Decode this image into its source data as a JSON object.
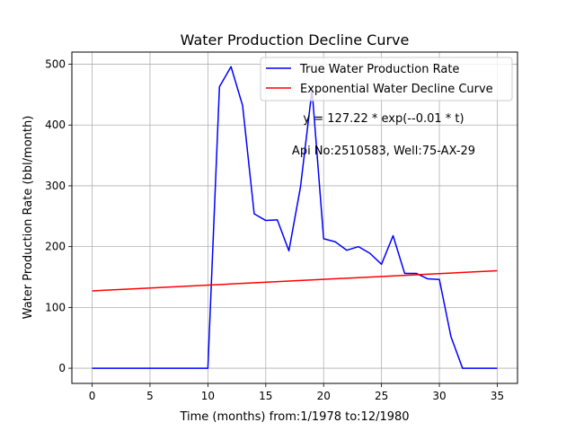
{
  "chart_data": {
    "type": "line",
    "title": "Water Production Decline Curve",
    "xlabel": "Time (months) from:1/1978 to:12/1980",
    "ylabel": "Water Production Rate (bbl/month)",
    "xlim": [
      -1.75,
      36.75
    ],
    "ylim": [
      -25,
      520
    ],
    "xticks": [
      0,
      5,
      10,
      15,
      20,
      25,
      30,
      35
    ],
    "yticks": [
      0,
      100,
      200,
      300,
      400,
      500
    ],
    "grid": true,
    "legend_position": "top-right",
    "series": [
      {
        "name": "True Water Production Rate",
        "color": "#0000ff",
        "x": [
          0,
          1,
          2,
          3,
          4,
          5,
          6,
          7,
          8,
          9,
          10,
          11,
          12,
          13,
          14,
          15,
          16,
          17,
          18,
          19,
          20,
          21,
          22,
          23,
          24,
          25,
          26,
          27,
          28,
          29,
          30,
          31,
          32,
          33,
          34,
          35
        ],
        "y": [
          0,
          0,
          0,
          0,
          0,
          0,
          0,
          0,
          0,
          0,
          0,
          463,
          496,
          432,
          254,
          243,
          244,
          193,
          298,
          458,
          213,
          208,
          194,
          200,
          189,
          171,
          218,
          156,
          156,
          147,
          146,
          52,
          0,
          0,
          0,
          0
        ]
      },
      {
        "name": "Exponential Water Decline Curve",
        "color": "#ff0000",
        "x": [
          0,
          35
        ],
        "y": [
          127.22,
          160.3
        ]
      }
    ],
    "annotations": [
      {
        "text": "y = 127.22 * exp(--0.01 * t)"
      },
      {
        "text": "Api No:2510583, Well:75-AX-29"
      }
    ]
  }
}
